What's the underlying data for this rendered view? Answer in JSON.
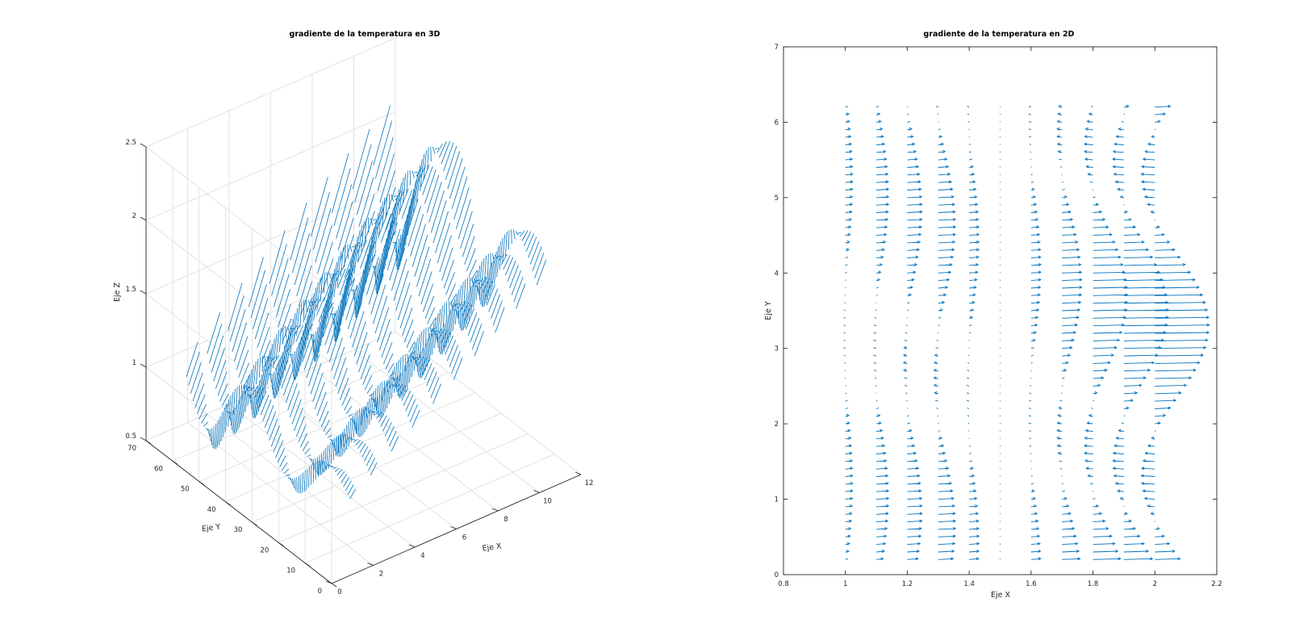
{
  "colors": {
    "quiver": "#0072bd",
    "axes": "#262626",
    "grid": "#dcdcdc"
  },
  "chart_data": [
    {
      "type": "quiver3d",
      "title": "gradiente de la temperatura en 3D",
      "xlabel": "Eje X",
      "ylabel": "Eje Y",
      "zlabel": "Eje Z",
      "xlim": [
        0,
        12
      ],
      "ylim": [
        0,
        70
      ],
      "zlim": [
        0.5,
        2.5
      ],
      "x_ticks": [
        0,
        2,
        4,
        6,
        8,
        10,
        12
      ],
      "y_ticks": [
        0,
        10,
        20,
        30,
        40,
        50,
        60,
        70
      ],
      "z_ticks": [
        0.5,
        1,
        1.5,
        2,
        2.5
      ],
      "grid": true,
      "series": [
        {
          "x": 1,
          "y_range": [
            1,
            63
          ],
          "base_z": 1.0,
          "amp_low": 0.1,
          "amp_high": 0.3,
          "cycles": 2
        },
        {
          "x": 2,
          "y_range": [
            1,
            63
          ],
          "base_z": 1.1,
          "amp_low": 0.12,
          "amp_high": 0.35,
          "cycles": 2
        },
        {
          "x": 3,
          "y_range": [
            1,
            63
          ],
          "base_z": 1.2,
          "amp_low": 0.14,
          "amp_high": 0.4,
          "cycles": 2
        },
        {
          "x": 4,
          "y_range": [
            1,
            63
          ],
          "base_z": 1.3,
          "amp_low": 0.16,
          "amp_high": 0.42,
          "cycles": 2
        },
        {
          "x": 5,
          "y_range": [
            1,
            63
          ],
          "base_z": 1.4,
          "amp_low": 0.18,
          "amp_high": 0.45,
          "cycles": 2
        },
        {
          "x": 6,
          "y_range": [
            1,
            63
          ],
          "base_z": 1.5,
          "amp_low": 0.2,
          "amp_high": 0.48,
          "cycles": 2
        },
        {
          "x": 7,
          "y_range": [
            1,
            63
          ],
          "base_z": 1.6,
          "amp_low": 0.22,
          "amp_high": 0.5,
          "cycles": 2
        },
        {
          "x": 8,
          "y_range": [
            1,
            63
          ],
          "base_z": 1.7,
          "amp_low": 0.22,
          "amp_high": 0.5,
          "cycles": 2
        },
        {
          "x": 9,
          "y_range": [
            1,
            63
          ],
          "base_z": 1.8,
          "amp_low": 0.22,
          "amp_high": 0.5,
          "cycles": 2
        },
        {
          "x": 10,
          "y_range": [
            1,
            63
          ],
          "base_z": 1.9,
          "amp_low": 0.22,
          "amp_high": 0.5,
          "cycles": 2
        }
      ]
    },
    {
      "type": "quiver",
      "title": "gradiente de la temperatura en 2D",
      "xlabel": "Eje X",
      "ylabel": "Eje Y",
      "xlim": [
        0.8,
        2.2
      ],
      "ylim": [
        0,
        7
      ],
      "x_ticks": [
        "0.8",
        "1",
        "1.2",
        "1.4",
        "1.6",
        "1.8",
        "2",
        "2.2"
      ],
      "y_ticks": [
        "0",
        "1",
        "2",
        "3",
        "4",
        "5",
        "6",
        "7"
      ],
      "grid": false,
      "columns_x": [
        1.0,
        1.1,
        1.2,
        1.3,
        1.4,
        1.5,
        1.6,
        1.7,
        1.8,
        1.9,
        2.0
      ],
      "column_amplitude": [
        0.015,
        0.025,
        0.03,
        0.035,
        0.02,
        0.0,
        0.02,
        0.04,
        0.07,
        0.09,
        0.11
      ],
      "column_phase": [
        0.0,
        0.3,
        0.6,
        0.9,
        1.2,
        0.0,
        1.8,
        2.1,
        2.4,
        2.7,
        3.0
      ],
      "rows_y": {
        "start": 0.2,
        "end": 6.2,
        "step": 0.1
      },
      "wave_cycles_over_range": 1.5
    }
  ]
}
